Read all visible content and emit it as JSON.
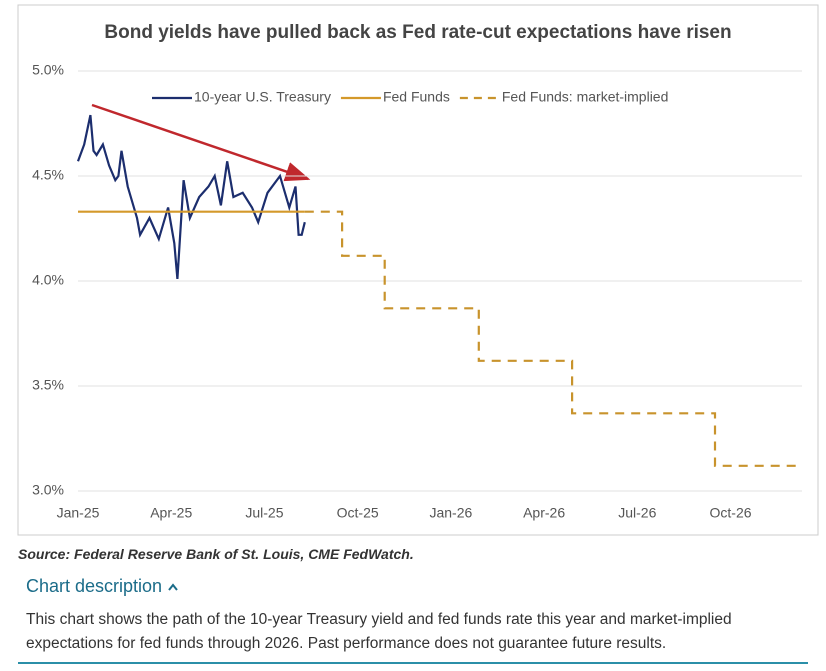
{
  "chart_data": {
    "type": "line",
    "title": "Bond yields have pulled back as Fed rate-cut expectations have risen",
    "xlim": [
      0,
      23.3
    ],
    "xticks": [
      {
        "value": 0,
        "label": "Jan-25"
      },
      {
        "value": 3,
        "label": "Apr-25"
      },
      {
        "value": 6,
        "label": "Jul-25"
      },
      {
        "value": 9,
        "label": "Oct-25"
      },
      {
        "value": 12,
        "label": "Jan-26"
      },
      {
        "value": 15,
        "label": "Apr-26"
      },
      {
        "value": 18,
        "label": "Jul-26"
      },
      {
        "value": 21,
        "label": "Oct-26"
      }
    ],
    "ylim": [
      3.0,
      5.0
    ],
    "yticks": [
      {
        "value": 3.0,
        "label": "3.0%"
      },
      {
        "value": 3.5,
        "label": "3.5%"
      },
      {
        "value": 4.0,
        "label": "4.0%"
      },
      {
        "value": 4.5,
        "label": "4.5%"
      },
      {
        "value": 5.0,
        "label": "5.0%"
      }
    ],
    "grid": true,
    "series": [
      {
        "name": "10-year U.S. Treasury",
        "color": "#1c2e6e",
        "dash": false,
        "x": [
          0,
          0.2,
          0.4,
          0.5,
          0.6,
          0.8,
          1.0,
          1.2,
          1.3,
          1.4,
          1.6,
          1.8,
          1.9,
          2.0,
          2.3,
          2.6,
          2.9,
          3.1,
          3.2,
          3.4,
          3.6,
          3.9,
          4.2,
          4.4,
          4.6,
          4.8,
          5.0,
          5.3,
          5.6,
          5.8,
          6.1,
          6.5,
          6.8,
          7.0,
          7.1,
          7.2,
          7.3
        ],
        "values": [
          4.57,
          4.65,
          4.79,
          4.62,
          4.6,
          4.65,
          4.55,
          4.48,
          4.5,
          4.62,
          4.45,
          4.35,
          4.3,
          4.22,
          4.3,
          4.2,
          4.35,
          4.18,
          4.01,
          4.48,
          4.3,
          4.4,
          4.45,
          4.5,
          4.36,
          4.57,
          4.4,
          4.42,
          4.35,
          4.28,
          4.42,
          4.5,
          4.35,
          4.45,
          4.22,
          4.22,
          4.28
        ]
      },
      {
        "name": "Fed Funds",
        "color": "#d4992a",
        "dash": false,
        "x": [
          0,
          7.3
        ],
        "values": [
          4.33,
          4.33
        ]
      },
      {
        "name": "Fed Funds: market-implied",
        "color": "#c8932c",
        "dash": true,
        "x": [
          7.3,
          8.5,
          8.5,
          9.87,
          9.87,
          12.9,
          12.9,
          15.9,
          15.9,
          20.5,
          20.5,
          23.3
        ],
        "values": [
          4.33,
          4.33,
          4.12,
          4.12,
          3.87,
          3.87,
          3.62,
          3.62,
          3.37,
          3.37,
          3.12,
          3.12
        ]
      }
    ]
  },
  "source": "Source: Federal Reserve Bank of St. Louis, CME FedWatch.",
  "description_heading": "Chart description",
  "description": "This chart shows the path of the 10-year Treasury yield and fed funds rate this year and market-implied expectations for fed funds through 2026. Past performance does not guarantee future results."
}
